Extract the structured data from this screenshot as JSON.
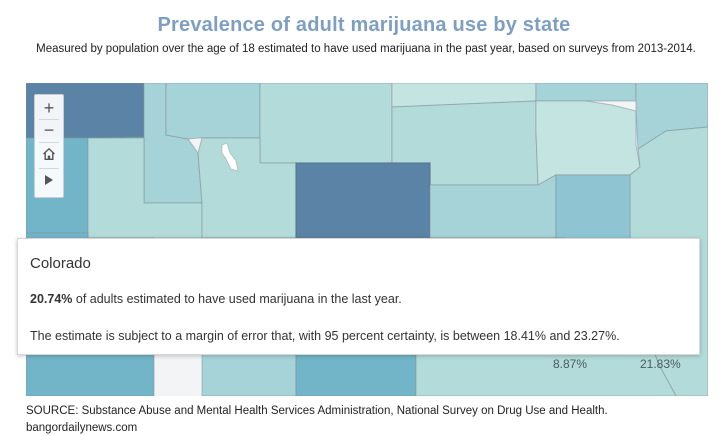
{
  "header": {
    "title": "Prevalence of adult marijuana use by state",
    "subtitle": "Measured by population over the age of 18 estimated to have used marijuana in the past year, based on  surveys from 2013-2014."
  },
  "map": {
    "legend_scale": {
      "lightest": "#c4e4e2",
      "light": "#b2dbd9",
      "medium_light": "#a6d3d7",
      "medium": "#8fc5d2",
      "medium_dark": "#72b5c9",
      "darker": "#6aa5c2",
      "darkest": "#5b83a6"
    },
    "visible_labels": [
      {
        "id": "label-a",
        "text": "8.87%"
      },
      {
        "id": "label-b",
        "text": "21.83%"
      }
    ]
  },
  "controls": {
    "zoom_in": "+",
    "zoom_out": "−",
    "home": "home-icon",
    "play": "play-icon"
  },
  "tooltip": {
    "state": "Colorado",
    "percent": "20.74%",
    "line1_rest": " of adults estimated to have used marijuana in the last year.",
    "line2": "The estimate is subject to a margin of error that, with 95 percent certainty, is between 18.41% and 23.27%."
  },
  "footer": {
    "source": "SOURCE: Substance Abuse and Mental Health Services Administration, National Survey on Drug Use and Health.",
    "site": "bangordailynews.com"
  }
}
